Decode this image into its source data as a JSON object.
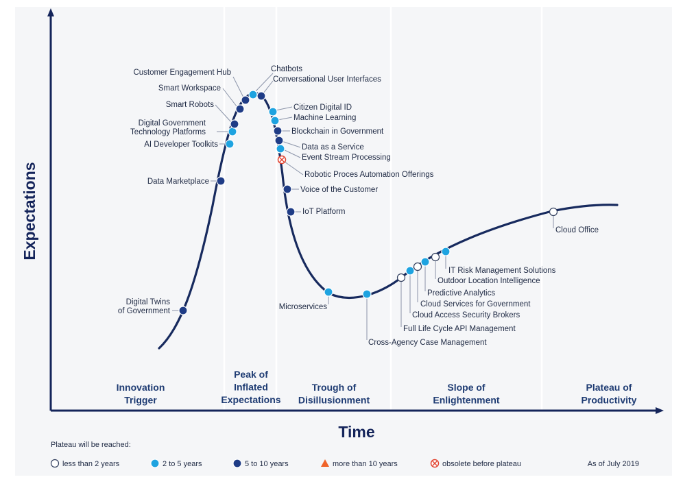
{
  "axes": {
    "y_title": "Expectations",
    "x_title": "Time"
  },
  "phases": [
    {
      "lines": [
        "Innovation",
        "Trigger"
      ]
    },
    {
      "lines": [
        "Peak of",
        "Inflated",
        "Expectations"
      ]
    },
    {
      "lines": [
        "Trough of",
        "Disillusionment"
      ]
    },
    {
      "lines": [
        "Slope of",
        "Enlightenment"
      ]
    },
    {
      "lines": [
        "Plateau of",
        "Productivity"
      ]
    }
  ],
  "categories": {
    "lt2": {
      "label": "less than 2 years",
      "color": "#ffffff"
    },
    "2to5": {
      "label": "2 to 5 years",
      "color": "#1ea3e0"
    },
    "5to10": {
      "label": "5 to 10 years",
      "color": "#1f3c86"
    },
    "gt10": {
      "label": "more than 10 years",
      "color": "#f0642a"
    },
    "obsolete": {
      "label": "obsolete before plateau",
      "color": "#e2412e"
    }
  },
  "legend": {
    "title": "Plateau will be reached:",
    "order": [
      "lt2",
      "2to5",
      "5to10",
      "gt10",
      "obsolete"
    ],
    "date_note": "As of July 2019"
  },
  "technologies": [
    {
      "name": "Digital Twins of Government",
      "lines": [
        "Digital Twins",
        "of Government"
      ],
      "category": "5to10"
    },
    {
      "name": "Data Marketplace",
      "lines": [
        "Data Marketplace"
      ],
      "category": "5to10"
    },
    {
      "name": "AI Developer Toolkits",
      "lines": [
        "AI Developer Toolkits"
      ],
      "category": "2to5"
    },
    {
      "name": "Digital Government Technology Platforms",
      "lines": [
        "Digital Government",
        "Technology Platforms"
      ],
      "category": "2to5"
    },
    {
      "name": "Smart Robots",
      "lines": [
        "Smart Robots"
      ],
      "category": "5to10"
    },
    {
      "name": "Smart Workspace",
      "lines": [
        "Smart Workspace"
      ],
      "category": "5to10"
    },
    {
      "name": "Customer Engagement Hub",
      "lines": [
        "Customer Engagement Hub"
      ],
      "category": "5to10"
    },
    {
      "name": "Chatbots",
      "lines": [
        "Chatbots"
      ],
      "category": "2to5"
    },
    {
      "name": "Conversational User Interfaces",
      "lines": [
        "Conversational User Interfaces"
      ],
      "category": "5to10"
    },
    {
      "name": "Citizen Digital ID",
      "lines": [
        "Citizen Digital ID"
      ],
      "category": "2to5"
    },
    {
      "name": "Machine Learning",
      "lines": [
        "Machine Learning"
      ],
      "category": "2to5"
    },
    {
      "name": "Blockchain in Government",
      "lines": [
        "Blockchain in Government"
      ],
      "category": "5to10"
    },
    {
      "name": "Data as a Service",
      "lines": [
        "Data as a Service"
      ],
      "category": "5to10"
    },
    {
      "name": "Event Stream Processing",
      "lines": [
        "Event Stream Processing"
      ],
      "category": "2to5"
    },
    {
      "name": "Robotic Proces Automation Offerings",
      "lines": [
        "Robotic Proces Automation Offerings"
      ],
      "category": "obsolete"
    },
    {
      "name": "Voice of the Customer",
      "lines": [
        "Voice of the Customer"
      ],
      "category": "5to10"
    },
    {
      "name": "IoT Platform",
      "lines": [
        "IoT Platform"
      ],
      "category": "5to10"
    },
    {
      "name": "Microservices",
      "lines": [
        "Microservices"
      ],
      "category": "2to5"
    },
    {
      "name": "Cross-Agency Case Management",
      "lines": [
        "Cross-Agency Case Management"
      ],
      "category": "2to5"
    },
    {
      "name": "Full Life Cycle API Management",
      "lines": [
        "Full Life Cycle API Management"
      ],
      "category": "lt2"
    },
    {
      "name": "Cloud Access Security Brokers",
      "lines": [
        "Cloud Access Security Brokers"
      ],
      "category": "2to5"
    },
    {
      "name": "Cloud Services for Government",
      "lines": [
        "Cloud Services for Government"
      ],
      "category": "lt2"
    },
    {
      "name": "Predictive Analytics",
      "lines": [
        "Predictive Analytics"
      ],
      "category": "2to5"
    },
    {
      "name": "Outdoor Location Intelligence",
      "lines": [
        "Outdoor Location Intelligence"
      ],
      "category": "lt2"
    },
    {
      "name": "IT Risk Management Solutions",
      "lines": [
        "IT Risk Management Solutions"
      ],
      "category": "2to5"
    },
    {
      "name": "Cloud Office",
      "lines": [
        "Cloud Office"
      ],
      "category": "lt2"
    }
  ]
}
